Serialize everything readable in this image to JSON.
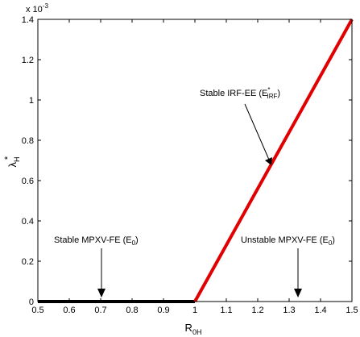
{
  "chart_data": {
    "type": "line",
    "xlabel": "R",
    "xlabel_sub": "0H",
    "ylabel": "λ",
    "ylabel_sup": "*",
    "ylabel_sub": "H",
    "y_scale_base": "x 10",
    "y_scale_exp": "-3",
    "xlim": [
      0.5,
      1.5
    ],
    "ylim": [
      0,
      1.4
    ],
    "xticks": [
      "0.5",
      "0.6",
      "0.7",
      "0.8",
      "0.9",
      "1",
      "1.1",
      "1.2",
      "1.3",
      "1.4",
      "1.5"
    ],
    "yticks": [
      "0",
      "0.2",
      "0.4",
      "0.6",
      "0.8",
      "1",
      "1.2",
      "1.4"
    ],
    "grid": false,
    "series": [
      {
        "color": "#000000",
        "x": [
          0.5,
          1.0
        ],
        "y": [
          0,
          0
        ]
      },
      {
        "color": "#e00000",
        "x": [
          1.0,
          1.5
        ],
        "y": [
          0,
          1.4
        ]
      }
    ],
    "annotations": [
      {
        "text": "Stable MPXV-FE (E",
        "sub": "0",
        "close": ")",
        "x": 0.7,
        "y": 0
      },
      {
        "text": "Stable IRF-EE (E",
        "sub": "IRF",
        "sup": "*",
        "close": ")",
        "x": 1.25,
        "y": 0.7
      },
      {
        "text": "Unstable MPXV-FE (E",
        "sub": "0",
        "close": ")",
        "x": 1.32,
        "y": 0
      }
    ]
  }
}
